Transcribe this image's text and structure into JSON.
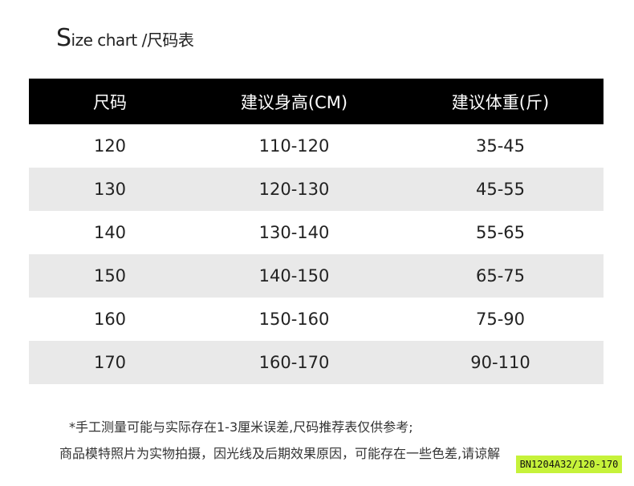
{
  "title": {
    "initial": "S",
    "rest": "ize chart /尺码表"
  },
  "table": {
    "headers": [
      "尺码",
      "建议身高(CM)",
      "建议体重(斤)"
    ],
    "rows": [
      [
        "120",
        "110-120",
        "35-45"
      ],
      [
        "130",
        "120-130",
        "45-55"
      ],
      [
        "140",
        "130-140",
        "55-65"
      ],
      [
        "150",
        "140-150",
        "65-75"
      ],
      [
        "160",
        "150-160",
        "75-90"
      ],
      [
        "170",
        "160-170",
        "90-110"
      ]
    ]
  },
  "notes": [
    "*手工测量可能与实际存在1-3厘米误差,尺码推荐表仅供参考;",
    "商品模特照片为实物拍摄，因光线及后期效果原因，可能存在一些色差,请谅解"
  ],
  "sku": "BN1204A32/120-170",
  "colors": {
    "header_bg": "#000000",
    "alt_row": "#e9e9e9",
    "sku_bg": "#c6f23a"
  }
}
